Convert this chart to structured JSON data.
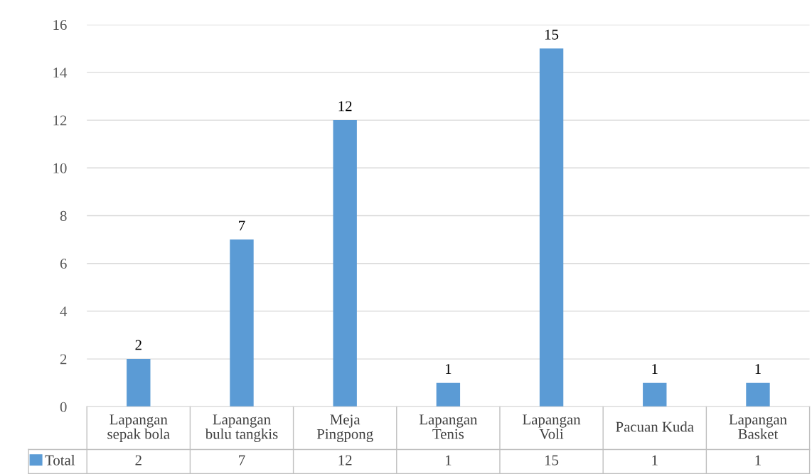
{
  "chart_data": {
    "type": "bar",
    "categories": [
      "Lapangan sepak bola",
      "Lapangan bulu tangkis",
      "Meja Pingpong",
      "Lapangan Tenis",
      "Lapangan Voli",
      "Pacuan Kuda",
      "Lapangan Basket"
    ],
    "series": [
      {
        "name": "Total",
        "color": "#5b9bd5",
        "values": [
          2,
          7,
          12,
          1,
          15,
          1,
          1
        ],
        "value_labels": [
          "2",
          "7",
          "12",
          "1",
          "15",
          "1",
          "1"
        ]
      }
    ],
    "annotations": [
      "2",
      "7",
      "12",
      "1",
      "15",
      "1",
      "1"
    ],
    "ylim": [
      0,
      16
    ],
    "yticks": [
      0,
      2,
      4,
      6,
      8,
      10,
      12,
      14,
      16
    ],
    "grid": "y",
    "data_labels": true,
    "legend": "bottom"
  }
}
